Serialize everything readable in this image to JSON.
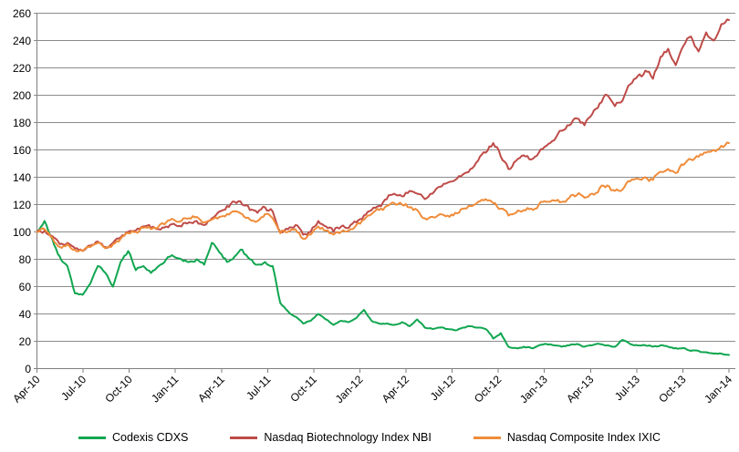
{
  "chart_data": {
    "type": "line",
    "title": "",
    "xlabel": "",
    "ylabel": "",
    "ylim": [
      0,
      260
    ],
    "y_ticks": [
      0,
      20,
      40,
      60,
      80,
      100,
      120,
      140,
      160,
      180,
      200,
      220,
      240,
      260
    ],
    "x_tick_labels": [
      "Apr-10",
      "Jul-10",
      "Oct-10",
      "Jan-11",
      "Apr-11",
      "Jul-11",
      "Oct-11",
      "Jan-12",
      "Apr-12",
      "Jul-12",
      "Oct-12",
      "Jan-13",
      "Apr-13",
      "Jul-13",
      "Oct-13",
      "Jan-14"
    ],
    "grid": "horizontal-only",
    "legend_position": "bottom-center",
    "sampling": "approx. biweekly values read from plot, Apr-2010 through Jan-2014, indexed to 100 at Apr-2010",
    "series": [
      {
        "name": "Codexis CDXS",
        "color": "#10A650",
        "values": [
          100,
          108,
          95,
          82,
          75,
          55,
          54,
          62,
          75,
          70,
          60,
          78,
          86,
          72,
          75,
          70,
          75,
          80,
          82,
          80,
          78,
          80,
          76,
          92,
          85,
          78,
          82,
          87,
          80,
          76,
          78,
          75,
          48,
          42,
          38,
          33,
          35,
          40,
          36,
          32,
          35,
          34,
          37,
          43,
          35,
          33,
          33,
          32,
          34,
          31,
          36,
          30,
          29,
          30,
          29,
          28,
          30,
          31,
          30,
          29,
          22,
          26,
          16,
          15,
          16,
          15,
          17,
          18,
          17,
          16,
          17,
          18,
          16,
          17,
          18,
          17,
          16,
          21,
          18,
          17,
          17,
          16,
          17,
          16,
          15,
          15,
          13,
          13,
          12,
          11,
          11,
          10
        ]
      },
      {
        "name": "Nasdaq Biotechnology Index NBI",
        "color": "#BE4B48",
        "values": [
          100,
          101,
          97,
          91,
          92,
          88,
          86,
          90,
          93,
          89,
          92,
          96,
          100,
          101,
          104,
          103,
          102,
          104,
          106,
          104,
          107,
          108,
          105,
          110,
          115,
          119,
          122,
          120,
          116,
          114,
          118,
          115,
          100,
          102,
          105,
          98,
          100,
          108,
          104,
          100,
          104,
          103,
          107,
          112,
          116,
          119,
          124,
          128,
          126,
          130,
          128,
          124,
          128,
          133,
          136,
          138,
          142,
          146,
          152,
          158,
          165,
          155,
          146,
          152,
          156,
          153,
          158,
          163,
          167,
          174,
          178,
          183,
          178,
          186,
          194,
          200,
          192,
          196,
          208,
          214,
          218,
          212,
          228,
          234,
          222,
          236,
          243,
          232,
          246,
          240,
          252,
          255
        ]
      },
      {
        "name": "Nasdaq Composite Index IXIC",
        "color": "#EF8C3A",
        "values": [
          100,
          102,
          96,
          89,
          91,
          87,
          86,
          89,
          92,
          88,
          91,
          95,
          99,
          100,
          103,
          102,
          104,
          107,
          109,
          108,
          110,
          111,
          107,
          109,
          111,
          113,
          115,
          113,
          109,
          108,
          113,
          110,
          99,
          100,
          102,
          95,
          98,
          104,
          101,
          98,
          100,
          101,
          105,
          109,
          113,
          116,
          119,
          121,
          120,
          118,
          116,
          110,
          111,
          113,
          112,
          114,
          117,
          119,
          122,
          124,
          121,
          117,
          112,
          114,
          116,
          117,
          120,
          122,
          123,
          122,
          125,
          127,
          125,
          128,
          132,
          134,
          130,
          131,
          137,
          139,
          140,
          138,
          144,
          146,
          143,
          149,
          153,
          155,
          158,
          160,
          163,
          165
        ]
      }
    ]
  },
  "colors": {
    "background": "#FFFFFF",
    "gridline": "#8C8C8C",
    "axis": "#7F7F7F",
    "tick_text": "#000000"
  }
}
